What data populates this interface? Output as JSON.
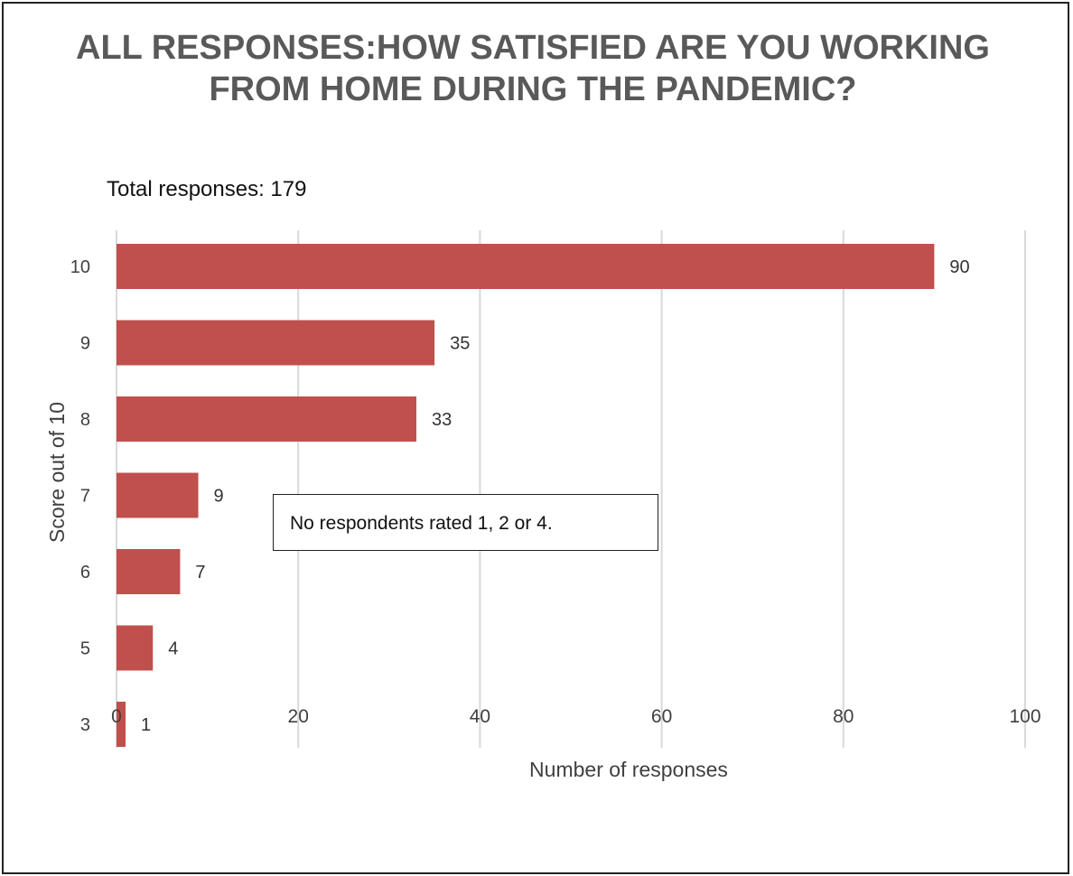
{
  "chart_data": {
    "type": "bar",
    "orientation": "horizontal",
    "title": "ALL RESPONSES:HOW SATISFIED ARE YOU WORKING FROM HOME DURING THE PANDEMIC?",
    "subtitle": "Total responses: 179",
    "xlabel": "Number of responses",
    "ylabel": "Score out of 10",
    "categories": [
      "10",
      "9",
      "8",
      "7",
      "6",
      "5",
      "3"
    ],
    "values": [
      90,
      35,
      33,
      9,
      7,
      4,
      1
    ],
    "data_labels": [
      "90",
      "35",
      "33",
      "9",
      "7",
      "4",
      "1"
    ],
    "xlim": [
      0,
      100
    ],
    "x_ticks": [
      0,
      20,
      40,
      60,
      80,
      100
    ],
    "x_tick_labels": [
      "0",
      "20",
      "40",
      "60",
      "80",
      "100"
    ],
    "grid": "vertical",
    "annotation": "No respondents rated 1, 2 or 4.",
    "colors": {
      "bar": "#c0504d",
      "grid": "#d9d9d9",
      "title": "#595959",
      "axis_text": "#404040"
    }
  }
}
